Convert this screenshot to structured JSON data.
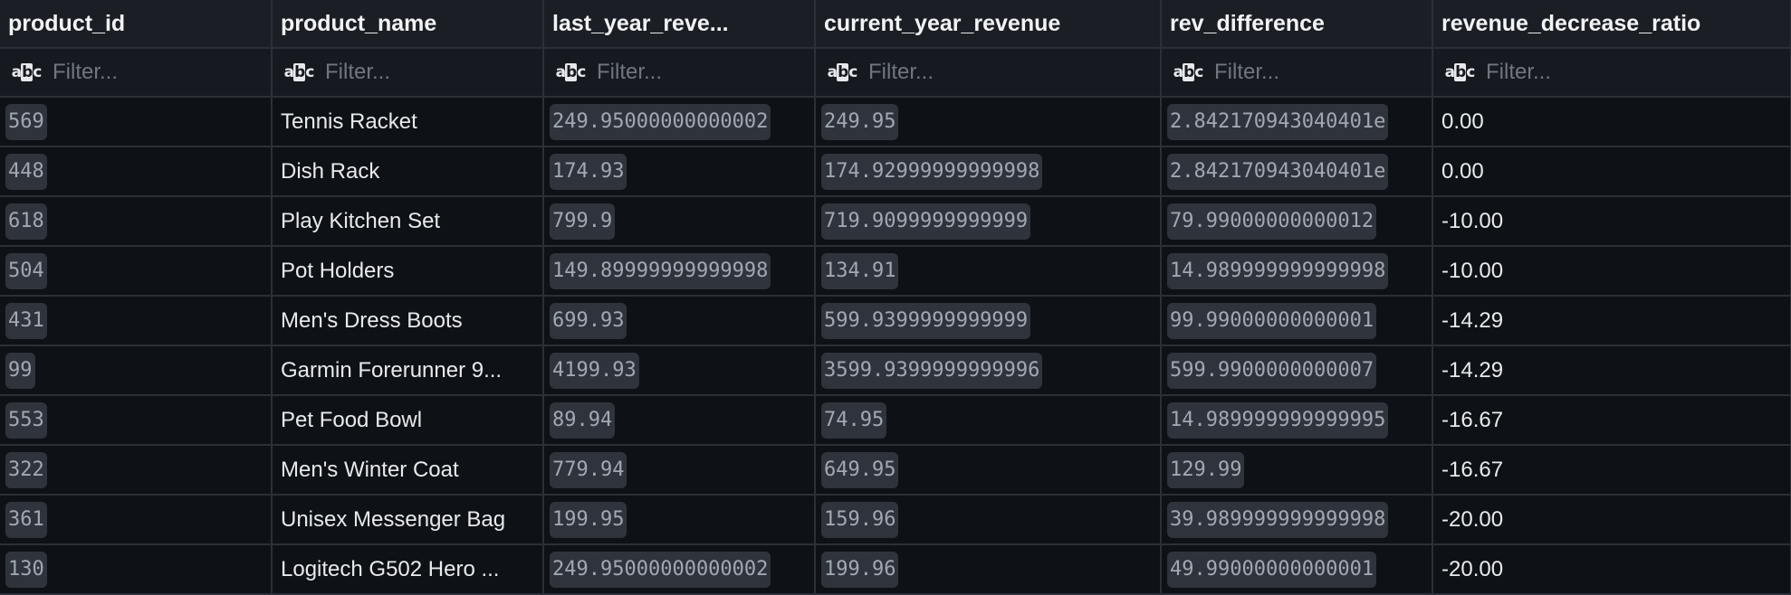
{
  "columns": [
    {
      "label": "product_id"
    },
    {
      "label": "product_name"
    },
    {
      "label": "last_year_reve..."
    },
    {
      "label": "current_year_revenue"
    },
    {
      "label": "rev_difference"
    },
    {
      "label": "revenue_decrease_ratio"
    }
  ],
  "filter": {
    "placeholder": "Filter...",
    "icon": "abc-text-type-icon"
  },
  "rows": [
    {
      "product_id": "569",
      "product_name": "Tennis Racket",
      "last_year_revenue": "249.95000000000002",
      "current_year_revenue": "249.95",
      "rev_difference": "2.842170943040401e",
      "revenue_decrease_ratio": "0.00"
    },
    {
      "product_id": "448",
      "product_name": "Dish Rack",
      "last_year_revenue": "174.93",
      "current_year_revenue": "174.92999999999998",
      "rev_difference": "2.842170943040401e",
      "revenue_decrease_ratio": "0.00"
    },
    {
      "product_id": "618",
      "product_name": "Play Kitchen Set",
      "last_year_revenue": "799.9",
      "current_year_revenue": "719.9099999999999",
      "rev_difference": "79.99000000000012",
      "revenue_decrease_ratio": "-10.00"
    },
    {
      "product_id": "504",
      "product_name": "Pot Holders",
      "last_year_revenue": "149.89999999999998",
      "current_year_revenue": "134.91",
      "rev_difference": "14.989999999999998",
      "revenue_decrease_ratio": "-10.00"
    },
    {
      "product_id": "431",
      "product_name": "Men's Dress Boots",
      "last_year_revenue": "699.93",
      "current_year_revenue": "599.9399999999999",
      "rev_difference": "99.99000000000001",
      "revenue_decrease_ratio": "-14.29"
    },
    {
      "product_id": "99",
      "product_name": "Garmin Forerunner 9...",
      "last_year_revenue": "4199.93",
      "current_year_revenue": "3599.9399999999996",
      "rev_difference": "599.9900000000007",
      "revenue_decrease_ratio": "-14.29"
    },
    {
      "product_id": "553",
      "product_name": "Pet Food Bowl",
      "last_year_revenue": "89.94",
      "current_year_revenue": "74.95",
      "rev_difference": "14.989999999999995",
      "revenue_decrease_ratio": "-16.67"
    },
    {
      "product_id": "322",
      "product_name": "Men's Winter Coat",
      "last_year_revenue": "779.94",
      "current_year_revenue": "649.95",
      "rev_difference": "129.99",
      "revenue_decrease_ratio": "-16.67"
    },
    {
      "product_id": "361",
      "product_name": "Unisex Messenger Bag",
      "last_year_revenue": "199.95",
      "current_year_revenue": "159.96",
      "rev_difference": "39.989999999999998",
      "revenue_decrease_ratio": "-20.00"
    },
    {
      "product_id": "130",
      "product_name": "Logitech G502 Hero ...",
      "last_year_revenue": "249.95000000000002",
      "current_year_revenue": "199.96",
      "rev_difference": "49.99000000000001",
      "revenue_decrease_ratio": "-20.00"
    }
  ],
  "colors": {
    "background": "#0e1116",
    "header_bg": "#1b1f25",
    "chip_bg": "#2f343c",
    "grid_line": "#2b3038"
  }
}
